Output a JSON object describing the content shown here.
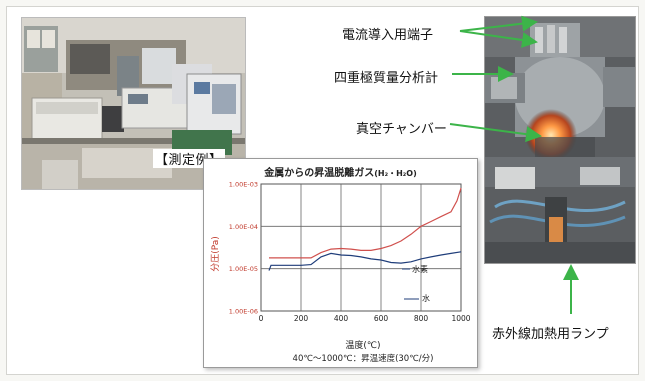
{
  "measurement_tag": "【測定例】",
  "callouts": {
    "terminal": "電流導入用端子",
    "qms": "四重極質量分析計",
    "vacuum": "真空チャンバー",
    "lamp": "赤外線加熱用ランプ"
  },
  "colors": {
    "arrow": "#3cb449",
    "h2_series": "#d0504d",
    "h2o_series": "#1f3d7a",
    "axis_label_red": "#c0392b"
  },
  "chart_data": {
    "type": "line",
    "title": "金属からの昇温脱離ガス",
    "title_subscript": "(H₂・H₂O)",
    "xlabel": "温度(℃)",
    "ylabel": "分圧(Pa)",
    "caption": "40℃〜1000℃：昇温速度(30℃/分)",
    "x_ticks": [
      "0",
      "200",
      "400",
      "600",
      "800",
      "1000"
    ],
    "y_ticks": [
      "1.00E-06",
      "1.00E-05",
      "1.00E-04",
      "1.00E-03"
    ],
    "xlim": [
      0,
      1000
    ],
    "ylim_log10": [
      -6,
      -3
    ],
    "grid": true,
    "series_labels": [
      "水素",
      "水"
    ],
    "series": [
      {
        "name": "水素",
        "color": "#d0504d",
        "x": [
          40,
          100,
          200,
          250,
          300,
          350,
          400,
          450,
          500,
          550,
          600,
          650,
          700,
          750,
          800,
          850,
          900,
          950,
          980,
          1000
        ],
        "y": [
          1.8e-05,
          1.8e-05,
          1.8e-05,
          1.8e-05,
          2.4e-05,
          2.9e-05,
          3e-05,
          2.9e-05,
          2.7e-05,
          2.7e-05,
          3e-05,
          3.5e-05,
          4.5e-05,
          6.5e-05,
          0.0001,
          0.00013,
          0.00017,
          0.00022,
          0.0004,
          0.0008
        ]
      },
      {
        "name": "水",
        "color": "#1f3d7a",
        "x": [
          40,
          50,
          100,
          200,
          250,
          300,
          350,
          400,
          450,
          500,
          550,
          600,
          650,
          700,
          750,
          800,
          850,
          900,
          950,
          1000
        ],
        "y": [
          9e-06,
          1.2e-05,
          1.2e-05,
          1.2e-05,
          1.25e-05,
          1.9e-05,
          2.3e-05,
          2.1e-05,
          2.05e-05,
          1.9e-05,
          1.7e-05,
          1.6e-05,
          1.4e-05,
          1.35e-05,
          1.45e-05,
          1.7e-05,
          1.9e-05,
          2.1e-05,
          2.3e-05,
          2.5e-05
        ]
      }
    ]
  }
}
